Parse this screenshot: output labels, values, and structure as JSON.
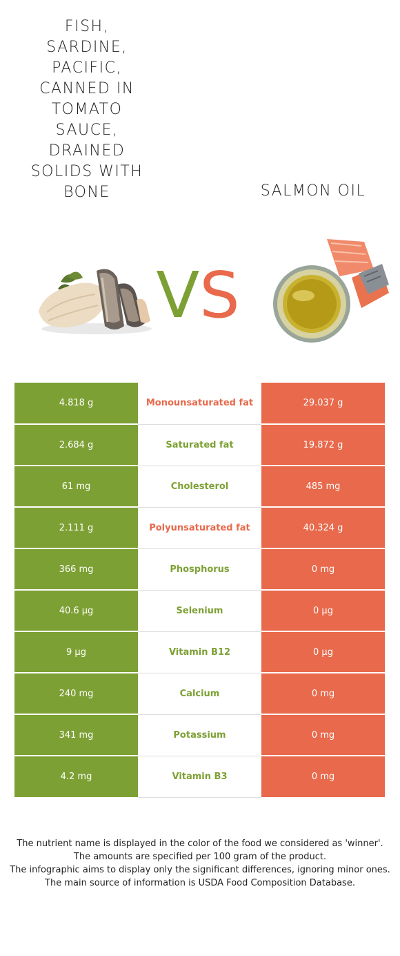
{
  "left_food": {
    "title": "FISH, SARDINE, PACIFIC, CANNED IN TOMATO SAUCE, DRAINED SOLIDS WITH BONE",
    "image_icon": "sardine-fish-image",
    "color": "#7da034"
  },
  "right_food": {
    "title": "SALMON OIL",
    "image_icon": "salmon-oil-bowl-image",
    "color": "#e8694b"
  },
  "vs": {
    "v": "V",
    "s": "S"
  },
  "rows": [
    {
      "left": "4.818 g",
      "name": "Monounsaturated fat",
      "right": "29.037 g",
      "winner": "right"
    },
    {
      "left": "2.684 g",
      "name": "Saturated fat",
      "right": "19.872 g",
      "winner": "left"
    },
    {
      "left": "61 mg",
      "name": "Cholesterol",
      "right": "485 mg",
      "winner": "left"
    },
    {
      "left": "2.111 g",
      "name": "Polyunsaturated fat",
      "right": "40.324 g",
      "winner": "right"
    },
    {
      "left": "366 mg",
      "name": "Phosphorus",
      "right": "0 mg",
      "winner": "left"
    },
    {
      "left": "40.6 µg",
      "name": "Selenium",
      "right": "0 µg",
      "winner": "left"
    },
    {
      "left": "9 µg",
      "name": "Vitamin B12",
      "right": "0 µg",
      "winner": "left"
    },
    {
      "left": "240 mg",
      "name": "Calcium",
      "right": "0 mg",
      "winner": "left"
    },
    {
      "left": "341 mg",
      "name": "Potassium",
      "right": "0 mg",
      "winner": "left"
    },
    {
      "left": "4.2 mg",
      "name": "Vitamin B3",
      "right": "0 mg",
      "winner": "left"
    }
  ],
  "notes": [
    "The nutrient name is displayed in the color of the food we considered as 'winner'.",
    "The amounts are specified per 100 gram of the product.",
    "The infographic aims to display only the significant differences, ignoring minor ones.",
    "The main source of information is USDA Food Composition Database."
  ]
}
